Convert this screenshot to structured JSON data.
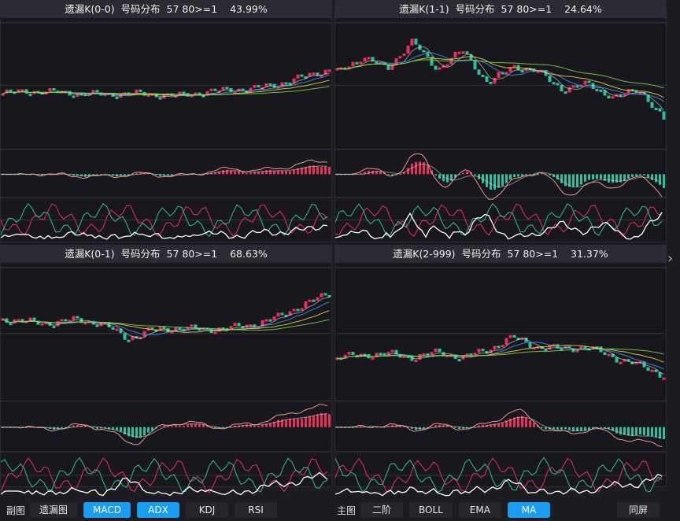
{
  "panels": [
    {
      "title": "遗漏K(0-0)  号码分布  57 80>=1    43.99%",
      "trend": [
        0.42,
        0.44,
        0.43,
        0.42,
        0.41,
        0.42,
        0.41,
        0.4,
        0.43,
        0.45,
        0.46,
        0.5,
        0.56,
        0.62
      ]
    },
    {
      "title": "遗漏K(1-1)  号码分布  57 80>=1    24.64%",
      "trend": [
        0.6,
        0.72,
        0.63,
        0.85,
        0.62,
        0.78,
        0.5,
        0.65,
        0.6,
        0.45,
        0.5,
        0.38,
        0.46,
        0.2
      ]
    },
    {
      "title": "遗漏K(0-1)  号码分布  57 80>=1    68.63%",
      "trend": [
        0.6,
        0.58,
        0.57,
        0.6,
        0.56,
        0.45,
        0.52,
        0.53,
        0.52,
        0.53,
        0.56,
        0.62,
        0.72,
        0.8
      ]
    },
    {
      "title": "遗漏K(2-999)  号码分布  57 80>=1    31.37%",
      "trend": [
        0.3,
        0.32,
        0.33,
        0.3,
        0.34,
        0.3,
        0.36,
        0.46,
        0.38,
        0.37,
        0.38,
        0.3,
        0.24,
        0.16
      ]
    }
  ],
  "colors": {
    "up": "#e8305a",
    "down": "#2ec09a",
    "ma": [
      "#ffffff",
      "#3b8ff0",
      "#e6d23a",
      "#7ad04a"
    ]
  },
  "toolbar": {
    "sub_label": "副图",
    "sub_buttons": [
      {
        "label": "遗漏图",
        "on": false
      },
      {
        "label": "MACD",
        "on": true
      },
      {
        "label": "ADX",
        "on": true
      },
      {
        "label": "KDJ",
        "on": false
      },
      {
        "label": "RSI",
        "on": false
      }
    ],
    "main_label": "主图",
    "main_buttons": [
      {
        "label": "二阶",
        "on": false
      },
      {
        "label": "BOLL",
        "on": false
      },
      {
        "label": "EMA",
        "on": false
      },
      {
        "label": "MA",
        "on": true
      }
    ],
    "same_screen": "同屏"
  },
  "next_arrow": "›"
}
